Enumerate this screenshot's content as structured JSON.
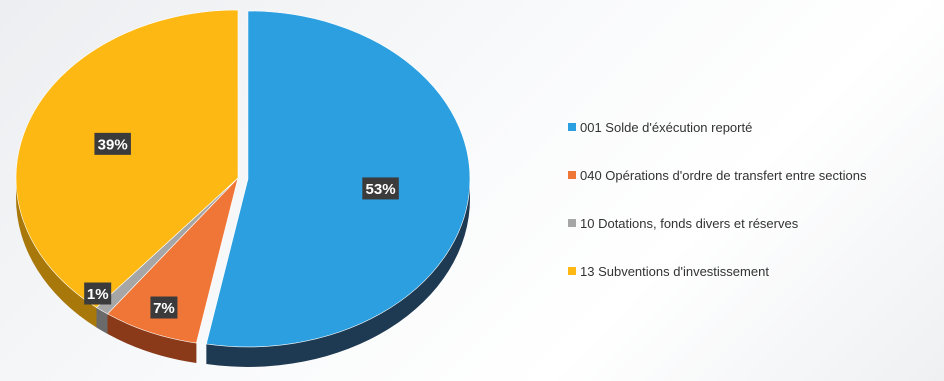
{
  "chart_data": {
    "type": "pie",
    "style": "3d-exploded-ellipse",
    "legend_position": "right",
    "slices": [
      {
        "label": "001 Solde d'éxécution reporté",
        "value": 53,
        "value_label": "53%",
        "color": "#2b9fe0",
        "dark": "#1e3a52"
      },
      {
        "label": "040 Opérations d'ordre de transfert entre sections",
        "value": 7,
        "value_label": "7%",
        "color": "#ef7636",
        "dark": "#8a3a18"
      },
      {
        "label": "10 Dotations, fonds divers et réserves",
        "value": 1,
        "value_label": "1%",
        "color": "#a6a6a6",
        "dark": "#6a6a6a"
      },
      {
        "label": "13 Subventions d'investissement",
        "value": 39,
        "value_label": "39%",
        "color": "#fdb813",
        "dark": "#a8780a"
      }
    ]
  }
}
